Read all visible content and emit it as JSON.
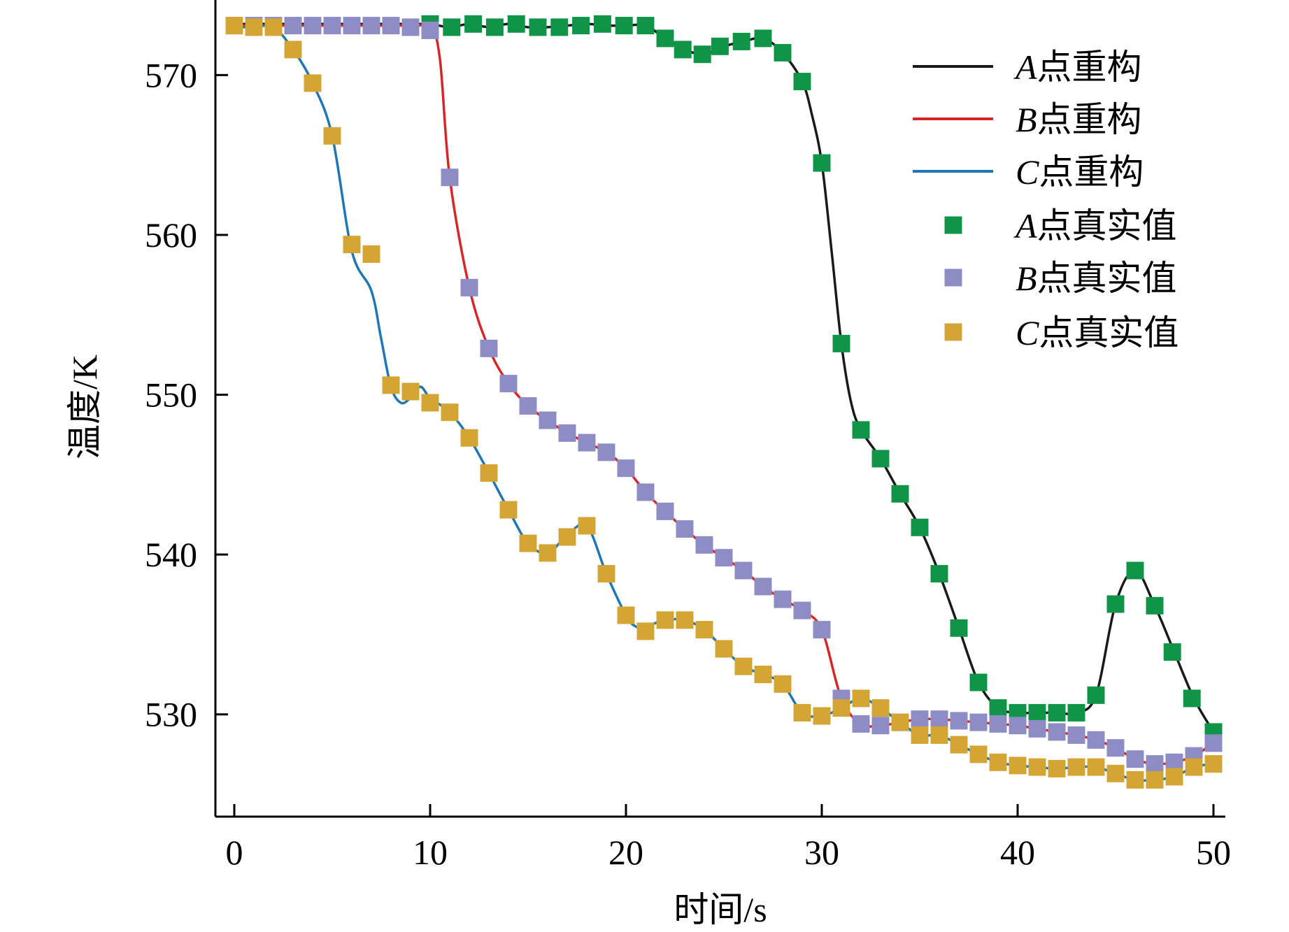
{
  "chart_data": {
    "type": "line",
    "xlabel": "时间/s",
    "ylabel": "温度/K",
    "xlim": [
      0,
      50
    ],
    "ylim": [
      523.6,
      574.7
    ],
    "xticks": [
      0,
      10,
      20,
      30,
      40,
      50
    ],
    "yticks": [
      530,
      540,
      550,
      560,
      570
    ],
    "grid": false,
    "legend_position": "top-right",
    "colors": {
      "A_line": "#1a1a1a",
      "B_line": "#d62728",
      "C_line": "#1f77b4",
      "A_marker": "#109448",
      "B_marker": "#8e8cc4",
      "C_marker": "#d4a532"
    },
    "legend": [
      {
        "letter": "A",
        "text": "点重构",
        "kind": "line",
        "color_key": "A_line"
      },
      {
        "letter": "B",
        "text": "点重构",
        "kind": "line",
        "color_key": "B_line"
      },
      {
        "letter": "C",
        "text": "点重构",
        "kind": "line",
        "color_key": "C_line"
      },
      {
        "letter": "A",
        "text": "点真实值",
        "kind": "marker",
        "color_key": "A_marker"
      },
      {
        "letter": "B",
        "text": "点真实值",
        "kind": "marker",
        "color_key": "B_marker"
      },
      {
        "letter": "C",
        "text": "点真实值",
        "kind": "marker",
        "color_key": "C_marker"
      }
    ],
    "series": [
      {
        "name": "A点重构",
        "kind": "line",
        "color_key": "A_line",
        "x": [
          0,
          9,
          10,
          11,
          12,
          13,
          14,
          15,
          16,
          17,
          18,
          19,
          20,
          21,
          22,
          23,
          24,
          25,
          26,
          27,
          28,
          29,
          29.5,
          30,
          30.5,
          31,
          31.5,
          32,
          33,
          34,
          35,
          36,
          37,
          38,
          39,
          40,
          41,
          42,
          43,
          44,
          45,
          46,
          47,
          48,
          49,
          50
        ],
        "y": [
          573.2,
          573.2,
          573.2,
          573.0,
          573.2,
          573.0,
          573.2,
          573.0,
          573.0,
          573.1,
          573.2,
          573.1,
          573.1,
          573.1,
          572.3,
          571.6,
          571.3,
          571.8,
          572.1,
          572.3,
          571.4,
          569.6,
          567.5,
          564.5,
          559.0,
          553.2,
          549.5,
          547.8,
          546.0,
          543.8,
          541.7,
          538.8,
          535.4,
          532.0,
          530.4,
          530.1,
          530.1,
          530.1,
          530.1,
          531.2,
          536.9,
          539.0,
          536.8,
          533.9,
          531.0,
          528.9
        ]
      },
      {
        "name": "B点重构",
        "kind": "line",
        "color_key": "B_line",
        "x": [
          0,
          9,
          10,
          10.5,
          11,
          12,
          13,
          14,
          15,
          16,
          17,
          18,
          19,
          20,
          21,
          22,
          23,
          24,
          25,
          26,
          27,
          28,
          29,
          30,
          31,
          32,
          33,
          34,
          35,
          36,
          37,
          38,
          39,
          40,
          41,
          42,
          43,
          44,
          45,
          46,
          47,
          48,
          49,
          50
        ],
        "y": [
          573.1,
          573.1,
          573.1,
          571.0,
          563.6,
          556.7,
          552.9,
          550.7,
          549.3,
          548.4,
          547.6,
          547.0,
          546.4,
          545.4,
          543.9,
          542.7,
          541.6,
          540.6,
          539.8,
          539.0,
          538.0,
          537.2,
          536.5,
          535.3,
          531.0,
          529.4,
          529.3,
          529.5,
          529.7,
          529.7,
          529.6,
          529.5,
          529.4,
          529.3,
          529.1,
          528.9,
          528.7,
          528.4,
          527.9,
          527.2,
          526.9,
          527.0,
          527.4,
          528.2
        ]
      },
      {
        "name": "C点重构",
        "kind": "line",
        "color_key": "C_line",
        "x": [
          0,
          1,
          2,
          3,
          4,
          5,
          6,
          7,
          7.5,
          8,
          8.5,
          9,
          9.5,
          10,
          11,
          12,
          13,
          14,
          15,
          16,
          17,
          18,
          19,
          20,
          20.5,
          21,
          22,
          23,
          24,
          25,
          26,
          27,
          28,
          29,
          30,
          31,
          32,
          33,
          34,
          35,
          36,
          37,
          38,
          39,
          40,
          41,
          42,
          43,
          44,
          45,
          46,
          47,
          48,
          49,
          50
        ],
        "y": [
          573.0,
          573.0,
          573.0,
          571.6,
          569.5,
          566.2,
          559.0,
          556.5,
          553.5,
          550.5,
          549.5,
          549.8,
          550.5,
          549.8,
          548.9,
          547.3,
          545.1,
          542.8,
          540.7,
          540.1,
          541.2,
          541.8,
          538.8,
          536.2,
          535.5,
          535.5,
          535.9,
          535.9,
          535.3,
          534.1,
          533.0,
          532.5,
          531.9,
          530.1,
          529.9,
          530.4,
          531.0,
          530.4,
          529.5,
          528.7,
          528.7,
          528.1,
          527.5,
          527.0,
          526.8,
          526.7,
          526.6,
          526.7,
          526.7,
          526.3,
          525.9,
          525.9,
          526.1,
          526.7,
          526.9
        ]
      },
      {
        "name": "A点真实值",
        "kind": "marker",
        "color_key": "A_marker",
        "x": [
          10,
          11.1,
          12.2,
          13.3,
          14.4,
          15.5,
          16.6,
          17.7,
          18.8,
          19.9,
          21.0,
          22.0,
          22.9,
          23.9,
          24.8,
          25.9,
          27.0,
          28.0,
          29.0,
          30.0,
          31.0,
          32.0,
          33.0,
          34.0,
          35.0,
          36.0,
          37.0,
          38.0,
          39.0,
          40.0,
          41.0,
          42.0,
          43.0,
          44.0,
          45.0,
          46.0,
          47.0,
          47.9,
          48.9,
          50.0
        ],
        "y": [
          573.2,
          573.0,
          573.2,
          573.0,
          573.2,
          573.0,
          573.0,
          573.1,
          573.2,
          573.1,
          573.1,
          572.3,
          571.6,
          571.3,
          571.8,
          572.1,
          572.3,
          571.4,
          569.6,
          564.5,
          553.2,
          547.8,
          546.0,
          543.8,
          541.7,
          538.8,
          535.4,
          532.0,
          530.4,
          530.1,
          530.1,
          530.1,
          530.1,
          531.2,
          536.9,
          539.0,
          536.8,
          533.9,
          531.0,
          528.9
        ]
      },
      {
        "name": "B点真实值",
        "kind": "marker",
        "color_key": "B_marker",
        "x": [
          0,
          1,
          2,
          3,
          4,
          5,
          6,
          7,
          8,
          9,
          10,
          11,
          12,
          13,
          14,
          15,
          16,
          17,
          18,
          19,
          20,
          21,
          22,
          23,
          24,
          25,
          26,
          27,
          28,
          29,
          30,
          31,
          32,
          33,
          34,
          35,
          36,
          37,
          38,
          39,
          40,
          41,
          42,
          43,
          44,
          45,
          46,
          47,
          48,
          49,
          50
        ],
        "y": [
          573.1,
          573.1,
          573.1,
          573.1,
          573.1,
          573.1,
          573.1,
          573.1,
          573.1,
          573.0,
          572.8,
          563.6,
          556.7,
          552.9,
          550.7,
          549.3,
          548.4,
          547.6,
          547.0,
          546.4,
          545.4,
          543.9,
          542.7,
          541.6,
          540.6,
          539.8,
          539.0,
          538.0,
          537.2,
          536.5,
          535.3,
          531.0,
          529.4,
          529.3,
          529.5,
          529.7,
          529.7,
          529.6,
          529.5,
          529.4,
          529.3,
          529.1,
          528.9,
          528.7,
          528.4,
          527.9,
          527.2,
          526.9,
          527.0,
          527.4,
          528.2
        ]
      },
      {
        "name": "C点真实值",
        "kind": "marker",
        "color_key": "C_marker",
        "x": [
          0,
          1,
          2,
          3,
          4,
          5,
          6,
          7,
          8,
          9,
          10,
          11,
          12,
          13,
          14,
          15,
          16,
          17,
          18,
          19,
          20,
          21,
          22,
          23,
          24,
          25,
          26,
          27,
          28,
          29,
          30,
          31,
          32,
          33,
          34,
          35,
          36,
          37,
          38,
          39,
          40,
          41,
          42,
          43,
          44,
          45,
          46,
          47,
          48,
          49,
          50
        ],
        "y": [
          573.1,
          573.0,
          573.0,
          571.6,
          569.5,
          566.2,
          559.4,
          558.8,
          550.6,
          550.2,
          549.5,
          548.9,
          547.3,
          545.1,
          542.8,
          540.7,
          540.1,
          541.1,
          541.8,
          538.8,
          536.2,
          535.2,
          535.9,
          535.9,
          535.3,
          534.1,
          533.0,
          532.5,
          531.9,
          530.1,
          529.9,
          530.4,
          531.0,
          530.4,
          529.5,
          528.7,
          528.7,
          528.1,
          527.5,
          527.0,
          526.8,
          526.7,
          526.6,
          526.7,
          526.7,
          526.3,
          525.9,
          525.9,
          526.1,
          526.7,
          526.9
        ]
      }
    ]
  }
}
